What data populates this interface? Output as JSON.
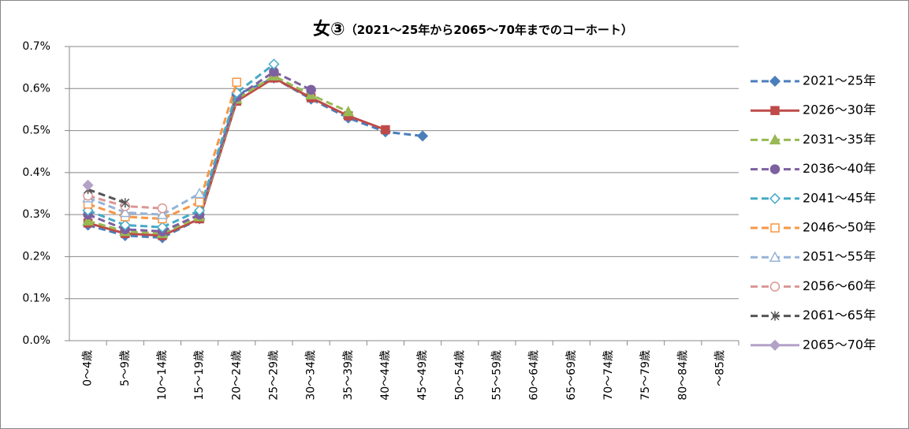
{
  "chart_data": {
    "type": "line",
    "title": "女③",
    "subtitle": "（2021～25年から2065～70年までのコーホート）",
    "categories": [
      "0～4歳",
      "5～9歳",
      "10～14歳",
      "15～19歳",
      "20～24歳",
      "25～29歳",
      "30～34歳",
      "35～39歳",
      "40～44歳",
      "45～49歳",
      "50～54歳",
      "55～59歳",
      "60～64歳",
      "65～69歳",
      "70～74歳",
      "75～79歳",
      "80～84歳",
      "～85歳"
    ],
    "ylim": [
      0,
      0.7
    ],
    "yticks": [
      {
        "value": 0,
        "label": "0.0%"
      },
      {
        "value": 0.1,
        "label": "0.1%"
      },
      {
        "value": 0.2,
        "label": "0.2%"
      },
      {
        "value": 0.3,
        "label": "0.3%"
      },
      {
        "value": 0.4,
        "label": "0.4%"
      },
      {
        "value": 0.5,
        "label": "0.5%"
      },
      {
        "value": 0.6,
        "label": "0.6%"
      },
      {
        "value": 0.7,
        "label": "0.7%"
      }
    ],
    "grid": true,
    "legend": "right",
    "series": [
      {
        "name": "2021～25年",
        "color": "#4a7ebb",
        "marker": "diamond",
        "hollow": false,
        "dashed": true,
        "values": [
          0.275,
          0.25,
          0.245,
          0.29,
          0.585,
          0.625,
          0.575,
          0.53,
          0.497,
          0.487,
          null,
          null,
          null,
          null,
          null,
          null,
          null,
          null
        ]
      },
      {
        "name": "2026～30年",
        "color": "#be4b48",
        "marker": "square",
        "hollow": false,
        "dashed": false,
        "values": [
          0.28,
          0.255,
          0.25,
          0.29,
          0.57,
          0.625,
          0.578,
          0.535,
          0.502,
          null,
          null,
          null,
          null,
          null,
          null,
          null,
          null,
          null
        ]
      },
      {
        "name": "2031～35年",
        "color": "#98b954",
        "marker": "triangle",
        "hollow": false,
        "dashed": true,
        "values": [
          0.285,
          0.26,
          0.255,
          0.295,
          0.575,
          0.63,
          0.585,
          0.545,
          null,
          null,
          null,
          null,
          null,
          null,
          null,
          null,
          null,
          null
        ]
      },
      {
        "name": "2036～40年",
        "color": "#7d60a0",
        "marker": "circle",
        "hollow": false,
        "dashed": true,
        "values": [
          0.3,
          0.265,
          0.26,
          0.3,
          0.58,
          0.64,
          0.597,
          null,
          null,
          null,
          null,
          null,
          null,
          null,
          null,
          null,
          null,
          null
        ]
      },
      {
        "name": "2041～45年",
        "color": "#46aac5",
        "marker": "diamond",
        "hollow": true,
        "dashed": true,
        "values": [
          0.31,
          0.275,
          0.27,
          0.31,
          0.59,
          0.658,
          null,
          null,
          null,
          null,
          null,
          null,
          null,
          null,
          null,
          null,
          null,
          null
        ]
      },
      {
        "name": "2046～50年",
        "color": "#f79646",
        "marker": "square",
        "hollow": true,
        "dashed": true,
        "values": [
          0.325,
          0.295,
          0.29,
          0.33,
          0.615,
          null,
          null,
          null,
          null,
          null,
          null,
          null,
          null,
          null,
          null,
          null,
          null,
          null
        ]
      },
      {
        "name": "2051～55年",
        "color": "#95b3d7",
        "marker": "triangle",
        "hollow": true,
        "dashed": true,
        "values": [
          0.34,
          0.305,
          0.3,
          0.35,
          null,
          null,
          null,
          null,
          null,
          null,
          null,
          null,
          null,
          null,
          null,
          null,
          null,
          null
        ]
      },
      {
        "name": "2056～60年",
        "color": "#d99694",
        "marker": "circle",
        "hollow": true,
        "dashed": true,
        "values": [
          0.345,
          0.32,
          0.315,
          null,
          null,
          null,
          null,
          null,
          null,
          null,
          null,
          null,
          null,
          null,
          null,
          null,
          null,
          null
        ]
      },
      {
        "name": "2061～65年",
        "color": "#555555",
        "marker": "star",
        "hollow": false,
        "dashed": true,
        "values": [
          0.36,
          0.328,
          null,
          null,
          null,
          null,
          null,
          null,
          null,
          null,
          null,
          null,
          null,
          null,
          null,
          null,
          null,
          null
        ]
      },
      {
        "name": "2065～70年",
        "color": "#b3a2c7",
        "marker": "diamond",
        "hollow": false,
        "dashed": false,
        "values": [
          0.37,
          null,
          null,
          null,
          null,
          null,
          null,
          null,
          null,
          null,
          null,
          null,
          null,
          null,
          null,
          null,
          null,
          null
        ]
      }
    ]
  }
}
